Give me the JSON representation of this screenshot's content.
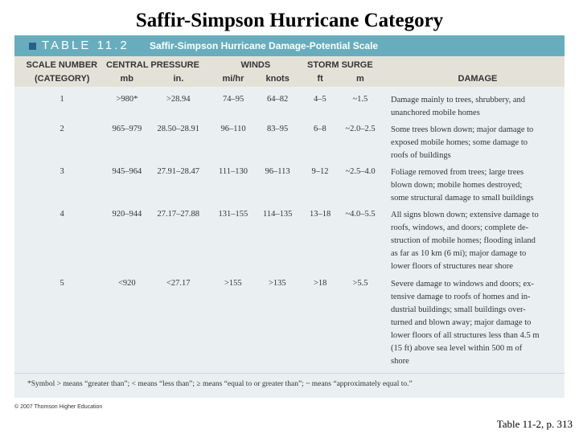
{
  "slide_title": "Saffir-Simpson Hurricane Category",
  "table": {
    "label": "TABLE 11.2",
    "title": "Saffir-Simpson Hurricane Damage-Potential Scale",
    "group_headers": [
      "SCALE NUMBER",
      "CENTRAL PRESSURE",
      "WINDS",
      "STORM SURGE"
    ],
    "column_headers": [
      "(CATEGORY)",
      "mb",
      "in.",
      "mi/hr",
      "knots",
      "ft",
      "m",
      "DAMAGE"
    ],
    "rows": [
      [
        "1",
        ">980*",
        ">28.94",
        "74–95",
        "64–82",
        "4–5",
        "~1.5",
        [
          "Damage mainly to trees, shrubbery, and",
          "unanchored mobile homes"
        ]
      ],
      [
        "2",
        "965–979",
        "28.50–28.91",
        "96–110",
        "83–95",
        "6–8",
        "~2.0–2.5",
        [
          "Some trees blown down; major damage to",
          "exposed mobile homes; some damage to",
          "roofs of buildings"
        ]
      ],
      [
        "3",
        "945–964",
        "27.91–28.47",
        "111–130",
        "96–113",
        "9–12",
        "~2.5–4.0",
        [
          "Foliage removed from trees; large trees",
          "blown down; mobile homes destroyed;",
          "some structural damage to small buildings"
        ]
      ],
      [
        "4",
        "920–944",
        "27.17–27.88",
        "131–155",
        "114–135",
        "13–18",
        "~4.0–5.5",
        [
          "All signs blown down; extensive damage to",
          "roofs, windows, and doors; complete de-",
          "struction of mobile homes; flooding inland",
          "as far as 10 km (6 mi); major damage to",
          "lower floors of structures near shore"
        ]
      ],
      [
        "5",
        "<920",
        "<27.17",
        ">155",
        ">135",
        ">18",
        ">5.5",
        [
          "Severe damage to windows and doors; ex-",
          "tensive damage to roofs of homes and in-",
          "dustrial buildings; small buildings over-",
          "turned and blown away; major damage to",
          "lower floors of all structures less than 4.5 m",
          "(15 ft) above sea level within 500 m of",
          "shore"
        ]
      ]
    ],
    "footnote": "*Symbol > means “greater than”; < means “less than”; ≥ means “equal to or greater than”; ~ means “approximately equal to.”",
    "copyright": "© 2007 Thomson Higher Education"
  },
  "caption": "Table 11-2, p. 313"
}
